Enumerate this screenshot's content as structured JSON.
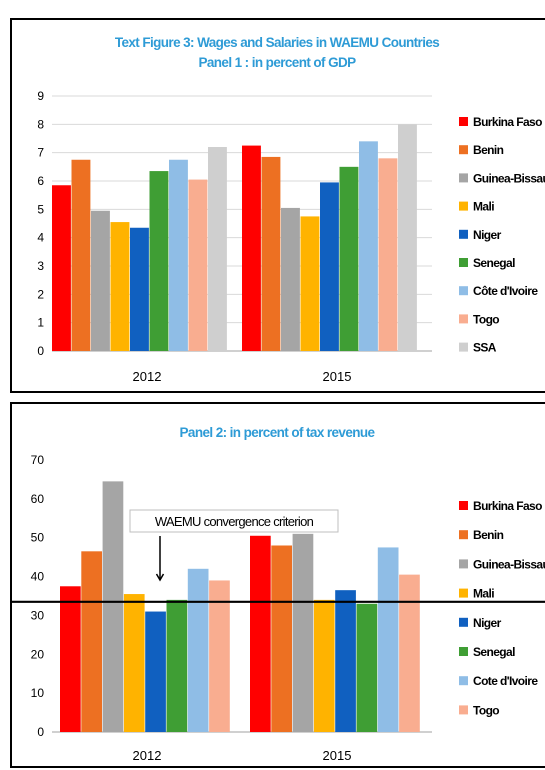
{
  "chart_data": [
    {
      "type": "bar",
      "title": "Text Figure 3: Wages and Salaries in WAEMU Countries",
      "subtitle": "Panel 1 : in percent of GDP",
      "xlabel": "",
      "ylabel": "",
      "ylim": [
        0,
        9
      ],
      "yticks": [
        0,
        1,
        2,
        3,
        4,
        5,
        6,
        7,
        8,
        9
      ],
      "grid": true,
      "legend": "right",
      "categories": [
        "2012",
        "2015"
      ],
      "series": [
        {
          "name": "Burkina Faso",
          "color": "#ff0000",
          "values": [
            5.85,
            7.25
          ]
        },
        {
          "name": "Benin",
          "color": "#ed7022",
          "values": [
            6.75,
            6.85
          ]
        },
        {
          "name": "Guinea-Bissau",
          "color": "#a5a5a5",
          "values": [
            4.95,
            5.05
          ]
        },
        {
          "name": "Mali",
          "color": "#ffb300",
          "values": [
            4.55,
            4.75
          ]
        },
        {
          "name": "Niger",
          "color": "#1060c0",
          "values": [
            4.35,
            5.95
          ]
        },
        {
          "name": "Senegal",
          "color": "#3f9e34",
          "values": [
            6.35,
            6.5
          ]
        },
        {
          "name": "Côte d'Ivoire",
          "color": "#8fbde6",
          "values": [
            6.75,
            7.4
          ]
        },
        {
          "name": "Togo",
          "color": "#f9ad90",
          "values": [
            6.05,
            6.8
          ]
        },
        {
          "name": "SSA",
          "color": "#cfcfcf",
          "values": [
            7.2,
            8.0
          ]
        }
      ]
    },
    {
      "type": "bar",
      "title": "Panel 2: in percent of tax revenue",
      "xlabel": "",
      "ylabel": "",
      "ylim": [
        0,
        70
      ],
      "yticks": [
        0,
        10,
        20,
        30,
        40,
        50,
        60,
        70
      ],
      "grid": false,
      "legend": "right",
      "categories": [
        "2012",
        "2015"
      ],
      "series": [
        {
          "name": "Burkina Faso",
          "color": "#ff0000",
          "values": [
            37.5,
            50.5
          ]
        },
        {
          "name": "Benin",
          "color": "#ed7022",
          "values": [
            46.5,
            48.0
          ]
        },
        {
          "name": "Guinea-Bissau",
          "color": "#a5a5a5",
          "values": [
            64.5,
            51.0
          ]
        },
        {
          "name": "Mali",
          "color": "#ffb300",
          "values": [
            35.5,
            34.0
          ]
        },
        {
          "name": "Niger",
          "color": "#1060c0",
          "values": [
            31.0,
            36.5
          ]
        },
        {
          "name": "Senegal",
          "color": "#3f9e34",
          "values": [
            34.0,
            33.0
          ]
        },
        {
          "name": "Cote d'Ivoire",
          "color": "#8fbde6",
          "values": [
            42.0,
            47.5
          ]
        },
        {
          "name": "Togo",
          "color": "#f9ad90",
          "values": [
            39.0,
            40.5
          ]
        }
      ],
      "reference_line": {
        "label": "WAEMU convergence criterion",
        "value": 33.5
      }
    }
  ]
}
